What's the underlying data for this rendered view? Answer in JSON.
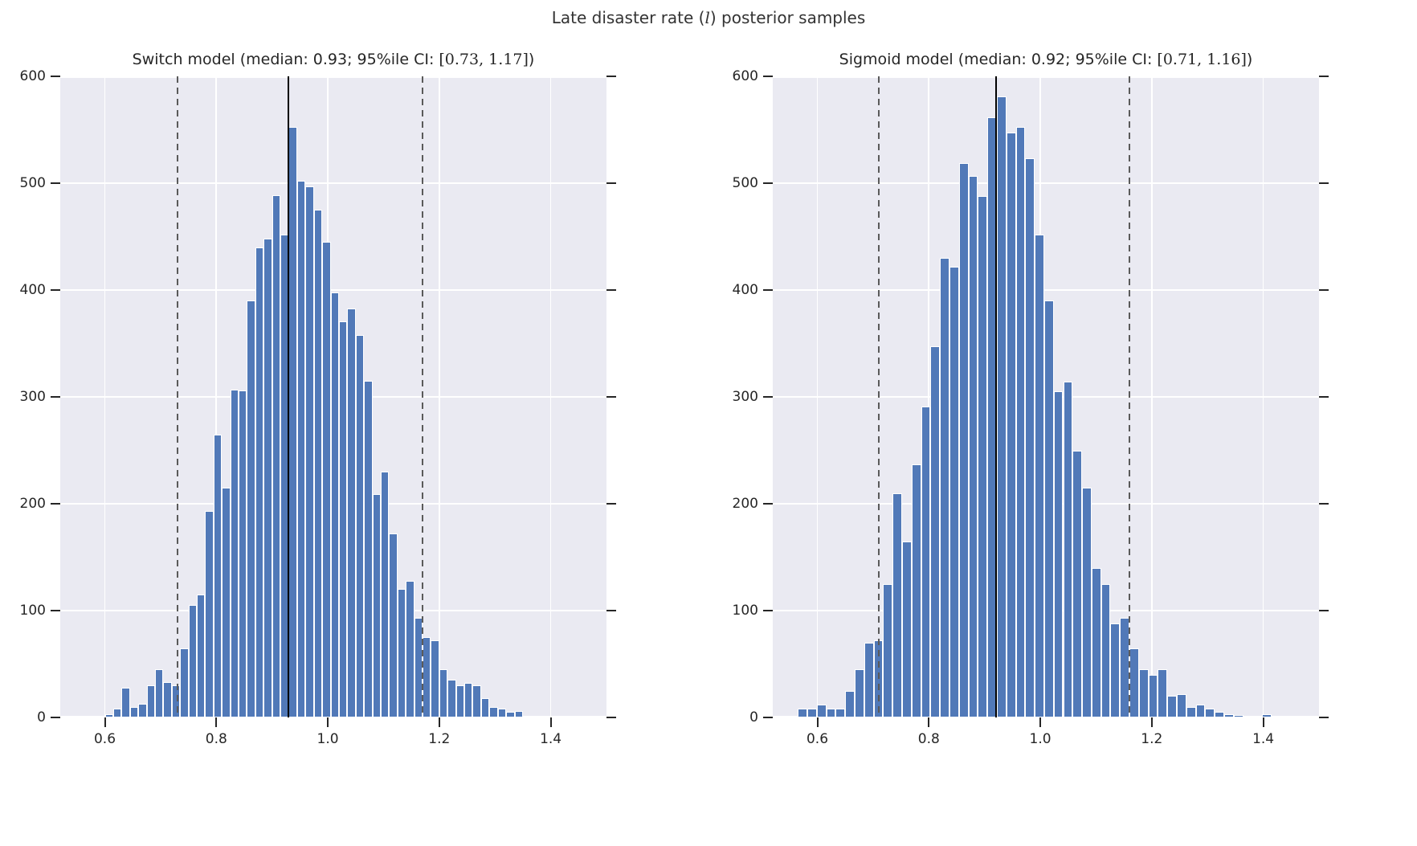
{
  "figure_title": {
    "prefix": "Late disaster rate (",
    "math": "l",
    "suffix": ") posterior samples"
  },
  "style": {
    "background": "#ffffff",
    "plot_background": "#eaeaf2",
    "grid_color": "#ffffff",
    "bar_color": "#5179b8",
    "bar_edge_color": "#ffffff",
    "median_line_color": "#000000",
    "ci_line_color": "#5a5a5a",
    "tick_color": "#262626",
    "text_color": "#262626"
  },
  "chart_data": [
    {
      "type": "bar",
      "subtype": "histogram",
      "panel": "left",
      "title": {
        "prefix": "Switch model (median: 0.93; 95%ile CI: ",
        "math": "[0.73, 1.17]",
        "suffix": ")"
      },
      "median": 0.93,
      "ci_low": 0.73,
      "ci_high": 1.17,
      "xlim": [
        0.52,
        1.5
      ],
      "ylim": [
        0,
        600
      ],
      "x_ticks": [
        "0.6",
        "0.8",
        "1.0",
        "1.2",
        "1.4"
      ],
      "x_tick_values": [
        0.6,
        0.8,
        1.0,
        1.2,
        1.4
      ],
      "y_ticks": [
        "0",
        "100",
        "200",
        "300",
        "400",
        "500",
        "600"
      ],
      "y_tick_values": [
        0,
        100,
        200,
        300,
        400,
        500,
        600
      ],
      "grid": true,
      "legend": false,
      "bin_start": 0.6,
      "bin_width": 0.015,
      "counts": [
        3,
        8,
        28,
        10,
        13,
        30,
        45,
        33,
        30,
        65,
        105,
        115,
        193,
        265,
        215,
        307,
        306,
        390,
        440,
        448,
        489,
        452,
        553,
        502,
        497,
        475,
        445,
        398,
        371,
        383,
        358,
        315,
        209,
        230,
        172,
        120,
        128,
        93,
        75,
        72,
        45,
        35,
        30,
        32,
        30,
        18,
        10,
        8,
        5,
        6
      ]
    },
    {
      "type": "bar",
      "subtype": "histogram",
      "panel": "right",
      "title": {
        "prefix": "Sigmoid model (median: 0.92; 95%ile CI: ",
        "math": "[0.71, 1.16]",
        "suffix": ")"
      },
      "median": 0.92,
      "ci_low": 0.71,
      "ci_high": 1.16,
      "xlim": [
        0.52,
        1.5
      ],
      "ylim": [
        0,
        600
      ],
      "x_ticks": [
        "0.6",
        "0.8",
        "1.0",
        "1.2",
        "1.4"
      ],
      "x_tick_values": [
        0.6,
        0.8,
        1.0,
        1.2,
        1.4
      ],
      "y_ticks": [
        "0",
        "100",
        "200",
        "300",
        "400",
        "500",
        "600"
      ],
      "y_tick_values": [
        0,
        100,
        200,
        300,
        400,
        500,
        600
      ],
      "grid": true,
      "legend": false,
      "bin_start": 0.565,
      "bin_width": 0.017,
      "counts": [
        8,
        8,
        12,
        8,
        8,
        25,
        45,
        70,
        72,
        125,
        210,
        165,
        237,
        291,
        347,
        430,
        422,
        519,
        507,
        488,
        562,
        581,
        547,
        553,
        523,
        452,
        390,
        305,
        314,
        250,
        215,
        140,
        125,
        88,
        93,
        65,
        45,
        40,
        45,
        20,
        22,
        10,
        12,
        8,
        5,
        3,
        2,
        0,
        0,
        3
      ]
    }
  ]
}
